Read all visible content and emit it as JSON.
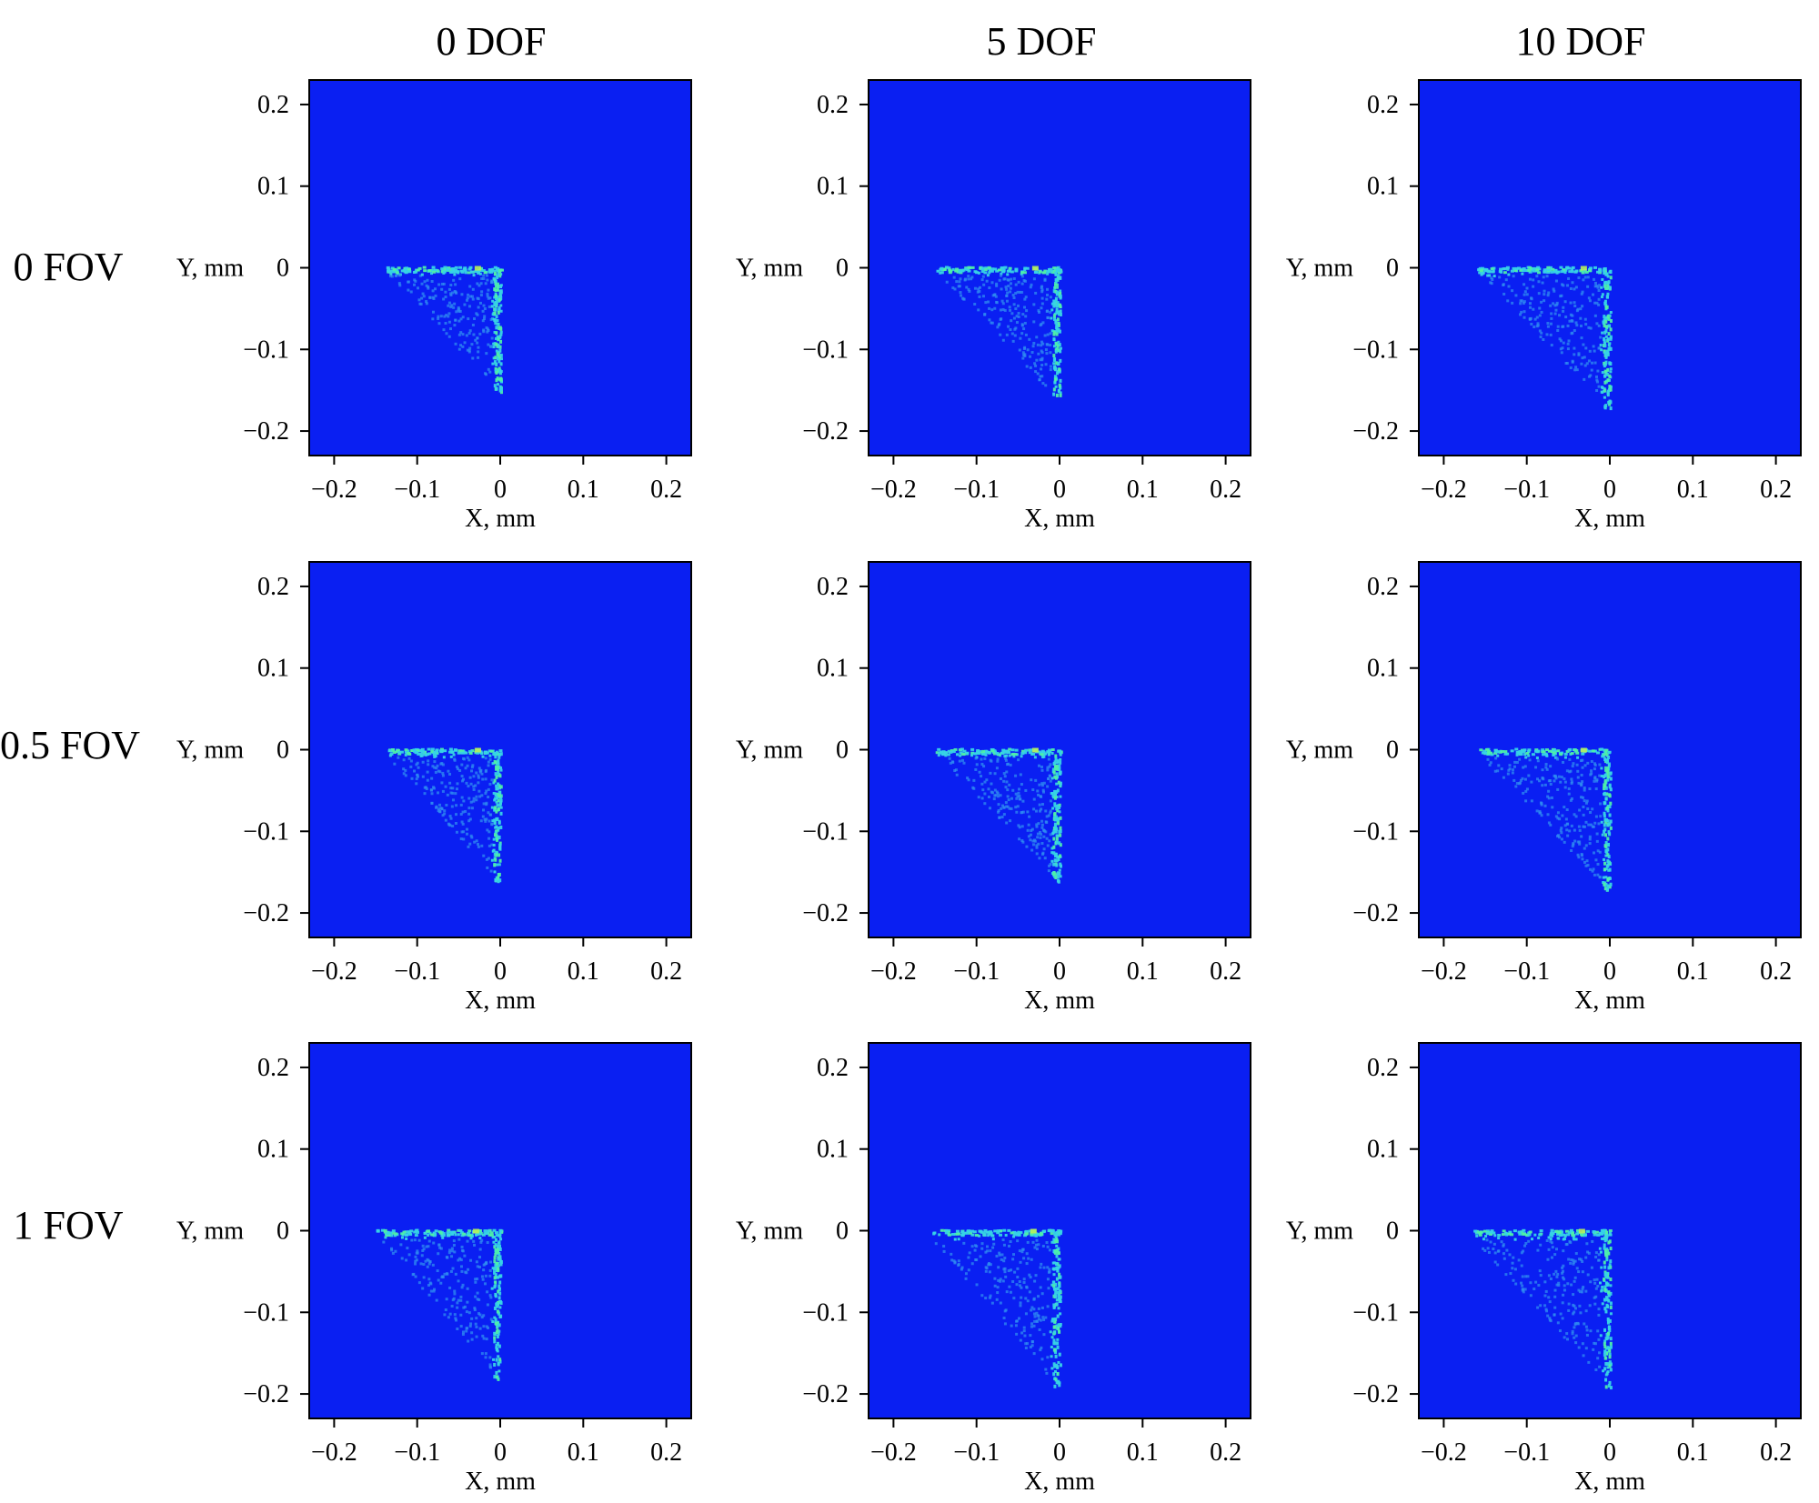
{
  "column_titles": [
    "0 DOF",
    "5 DOF",
    "10 DOF"
  ],
  "row_titles": [
    "0 FOV",
    "0.5 FOV",
    "1 FOV"
  ],
  "colors": {
    "background": "#0a1ff2",
    "spot_dim": "#2f8cf0",
    "spot_mid": "#37d3e6",
    "spot_bright": "#4ef0a8",
    "spot_peak": "#b8f05a",
    "axis": "#000000"
  },
  "chart_data": [
    {
      "type": "heatmap",
      "panel": "0 DOF / 0 FOV",
      "xlabel": "X, mm",
      "ylabel": "Y, mm",
      "xlim": [
        -0.23,
        0.23
      ],
      "ylim": [
        -0.23,
        0.23
      ],
      "ticks": [
        "−0.2",
        "−0.1",
        "0",
        "0.1",
        "0.2"
      ],
      "spot": {
        "x_extent": [
          -0.14,
          0.0
        ],
        "y_extent": [
          -0.15,
          0.0
        ],
        "shape": "right-angle corner"
      }
    },
    {
      "type": "heatmap",
      "panel": "5 DOF / 0 FOV",
      "xlabel": "X, mm",
      "ylabel": "Y, mm",
      "xlim": [
        -0.23,
        0.23
      ],
      "ylim": [
        -0.23,
        0.23
      ],
      "ticks": [
        "−0.2",
        "−0.1",
        "0",
        "0.1",
        "0.2"
      ],
      "spot": {
        "x_extent": [
          -0.15,
          0.0
        ],
        "y_extent": [
          -0.16,
          0.0
        ],
        "shape": "right-angle corner"
      }
    },
    {
      "type": "heatmap",
      "panel": "10 DOF / 0 FOV",
      "xlabel": "X, mm",
      "ylabel": "Y, mm",
      "xlim": [
        -0.23,
        0.23
      ],
      "ylim": [
        -0.23,
        0.23
      ],
      "ticks": [
        "−0.2",
        "−0.1",
        "0",
        "0.1",
        "0.2"
      ],
      "spot": {
        "x_extent": [
          -0.16,
          0.0
        ],
        "y_extent": [
          -0.17,
          0.0
        ],
        "shape": "right-angle corner"
      }
    },
    {
      "type": "heatmap",
      "panel": "0 DOF / 0.5 FOV",
      "xlabel": "X, mm",
      "ylabel": "Y, mm",
      "xlim": [
        -0.23,
        0.23
      ],
      "ylim": [
        -0.23,
        0.23
      ],
      "ticks": [
        "−0.2",
        "−0.1",
        "0",
        "0.1",
        "0.2"
      ],
      "spot": {
        "x_extent": [
          -0.14,
          0.0
        ],
        "y_extent": [
          -0.16,
          0.0
        ],
        "shape": "right-angle corner"
      }
    },
    {
      "type": "heatmap",
      "panel": "5 DOF / 0.5 FOV",
      "xlabel": "X, mm",
      "ylabel": "Y, mm",
      "xlim": [
        -0.23,
        0.23
      ],
      "ylim": [
        -0.23,
        0.23
      ],
      "ticks": [
        "−0.2",
        "−0.1",
        "0",
        "0.1",
        "0.2"
      ],
      "spot": {
        "x_extent": [
          -0.15,
          0.0
        ],
        "y_extent": [
          -0.16,
          0.0
        ],
        "shape": "right-angle corner"
      }
    },
    {
      "type": "heatmap",
      "panel": "10 DOF / 0.5 FOV",
      "xlabel": "X, mm",
      "ylabel": "Y, mm",
      "xlim": [
        -0.23,
        0.23
      ],
      "ylim": [
        -0.23,
        0.23
      ],
      "ticks": [
        "−0.2",
        "−0.1",
        "0",
        "0.1",
        "0.2"
      ],
      "spot": {
        "x_extent": [
          -0.16,
          0.0
        ],
        "y_extent": [
          -0.17,
          0.0
        ],
        "shape": "right-angle corner"
      }
    },
    {
      "type": "heatmap",
      "panel": "0 DOF / 1 FOV",
      "xlabel": "X, mm",
      "ylabel": "Y, mm",
      "xlim": [
        -0.23,
        0.23
      ],
      "ylim": [
        -0.23,
        0.23
      ],
      "ticks": [
        "−0.2",
        "−0.1",
        "0",
        "0.1",
        "0.2"
      ],
      "spot": {
        "x_extent": [
          -0.15,
          0.0
        ],
        "y_extent": [
          -0.18,
          0.0
        ],
        "shape": "right-angle corner"
      }
    },
    {
      "type": "heatmap",
      "panel": "5 DOF / 1 FOV",
      "xlabel": "X, mm",
      "ylabel": "Y, mm",
      "xlim": [
        -0.23,
        0.23
      ],
      "ylim": [
        -0.23,
        0.23
      ],
      "ticks": [
        "−0.2",
        "−0.1",
        "0",
        "0.1",
        "0.2"
      ],
      "spot": {
        "x_extent": [
          -0.16,
          0.0
        ],
        "y_extent": [
          -0.19,
          0.0
        ],
        "shape": "right-angle corner"
      }
    },
    {
      "type": "heatmap",
      "panel": "10 DOF / 1 FOV",
      "xlabel": "X, mm",
      "ylabel": "Y, mm",
      "xlim": [
        -0.23,
        0.23
      ],
      "ylim": [
        -0.23,
        0.23
      ],
      "ticks": [
        "−0.2",
        "−0.1",
        "0",
        "0.1",
        "0.2"
      ],
      "spot": {
        "x_extent": [
          -0.17,
          0.0
        ],
        "y_extent": [
          -0.19,
          0.0
        ],
        "shape": "right-angle corner"
      }
    }
  ]
}
